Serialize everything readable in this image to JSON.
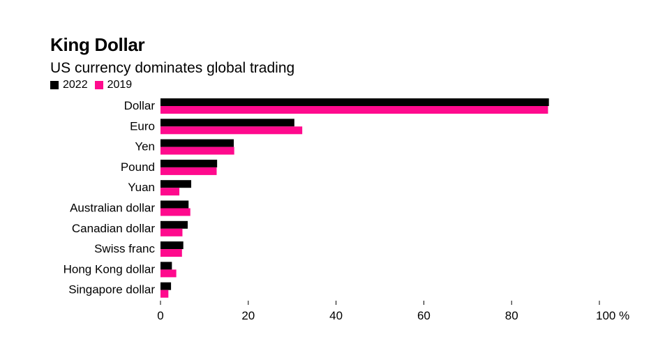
{
  "chart_data": {
    "type": "bar",
    "orientation": "horizontal",
    "title": "King Dollar",
    "subtitle": "US currency dominates global trading",
    "categories": [
      "Dollar",
      "Euro",
      "Yen",
      "Pound",
      "Yuan",
      "Australian dollar",
      "Canadian dollar",
      "Swiss franc",
      "Hong Kong dollar",
      "Singapore dollar"
    ],
    "series": [
      {
        "name": "2022",
        "color": "#000000",
        "values": [
          88.5,
          30.5,
          16.7,
          12.9,
          7.0,
          6.4,
          6.2,
          5.2,
          2.6,
          2.4
        ]
      },
      {
        "name": "2019",
        "color": "#ff0a8d",
        "values": [
          88.3,
          32.3,
          16.8,
          12.8,
          4.3,
          6.8,
          5.0,
          4.9,
          3.6,
          1.8
        ]
      }
    ],
    "x_ticks": [
      "0",
      "20",
      "40",
      "60",
      "80",
      "100 %"
    ],
    "xlim": [
      0,
      100
    ],
    "legend_position": "top-left",
    "grid": false
  }
}
